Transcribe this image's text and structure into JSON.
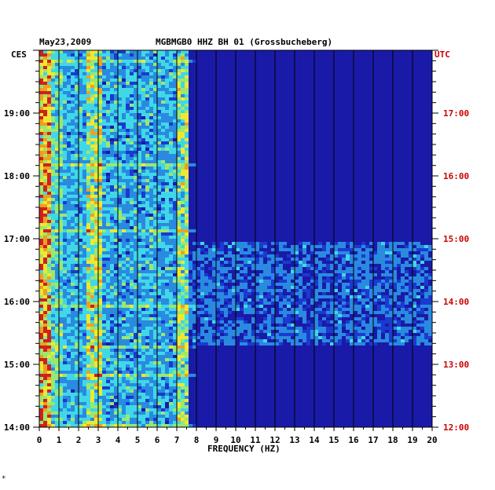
{
  "header": {
    "date": "May23,2009",
    "station_text": "MGBMGB0 HHZ BH 01 (Grossbucheberg)"
  },
  "left_axis_label": "CES",
  "right_axis_label": "UTC",
  "footer_mark": "*",
  "colors": {
    "background_blue": "#1a1aa8",
    "grid": "#000000",
    "utc_label": "#cc0000"
  },
  "chart_data": {
    "type": "heatmap",
    "title": "",
    "xlabel": "FREQUENCY (HZ)",
    "xlim": [
      0,
      20
    ],
    "x_ticks": [
      "0",
      "1",
      "2",
      "3",
      "4",
      "5",
      "6",
      "7",
      "8",
      "9",
      "10",
      "11",
      "12",
      "13",
      "14",
      "15",
      "16",
      "17",
      "18",
      "19",
      "20"
    ],
    "y_ces_ticks": [
      "19:00",
      "18:00",
      "17:00",
      "16:00",
      "15:00",
      "14:00"
    ],
    "y_utc_ticks": [
      "17:00",
      "16:00",
      "15:00",
      "14:00",
      "13:00",
      "12:00"
    ],
    "time_range_ces": [
      "14:00",
      "20:00"
    ],
    "colormap": [
      "#10108c",
      "#1a3ad0",
      "#2a8ae0",
      "#40d8e8",
      "#9ae870",
      "#f0e830",
      "#f0a020",
      "#d02020"
    ],
    "notes_bands": [
      {
        "freq_from": 0,
        "freq_to": 0.6,
        "level": "high"
      },
      {
        "freq_from": 2.6,
        "freq_to": 3.1,
        "level": "medium-high"
      },
      {
        "freq_from": 7.1,
        "freq_to": 7.5,
        "level": "medium-high"
      }
    ]
  }
}
